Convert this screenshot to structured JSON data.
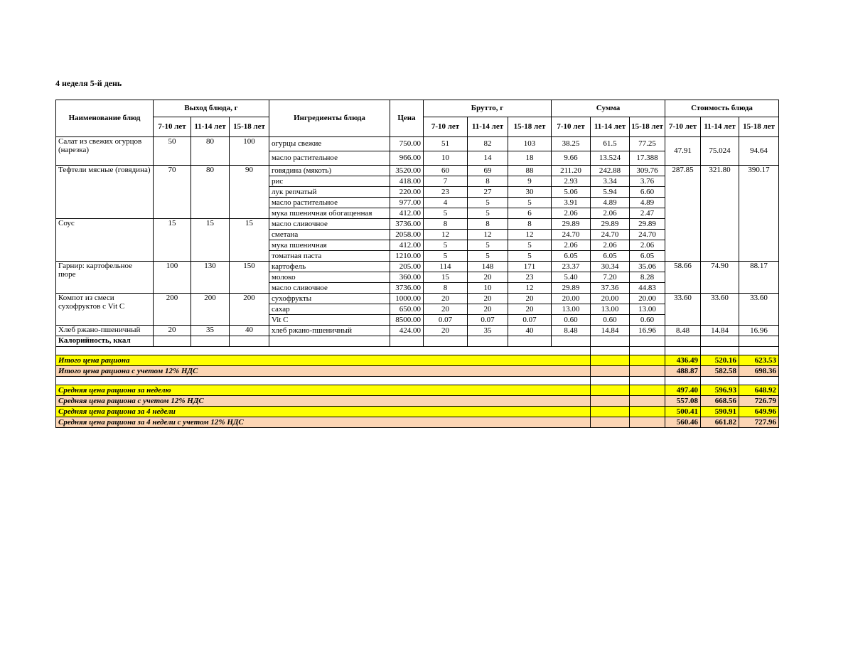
{
  "page": {
    "title": "4 неделя 5-й день"
  },
  "table": {
    "header": {
      "dish_name": "Наименование блюд",
      "output_group": "Выход блюда, г",
      "ingredients": "Ингредиенты блюда",
      "price": "Цена",
      "gross_group": "Брутто, г",
      "sum_group": "Сумма",
      "cost_group": "Стоимость блюда",
      "age_cols": [
        "7-10 лет",
        "11-14 лет",
        "15-18 лет"
      ]
    },
    "dishes": [
      {
        "name": "Салат из свежих огурцов (нарезка)",
        "output": [
          "50",
          "80",
          "100"
        ],
        "cost": [
          "47.91",
          "75.024",
          "94.64"
        ],
        "ingredients": [
          {
            "name": "огурцы свежие",
            "price": "750.00",
            "gross": [
              "51",
              "82",
              "103"
            ],
            "sum": [
              "38.25",
              "61.5",
              "77.25"
            ]
          },
          {
            "name": "масло растительное",
            "price": "966.00",
            "gross": [
              "10",
              "14",
              "18"
            ],
            "sum": [
              "9.66",
              "13.524",
              "17.388"
            ]
          }
        ]
      },
      {
        "name": "Тефтели мясные (говядина)",
        "output": [
          "70",
          "80",
          "90"
        ],
        "cost": [
          "287.85",
          "321.80",
          "390.17"
        ],
        "ingredients": [
          {
            "name": "говядина (мякоть)",
            "price": "3520.00",
            "gross": [
              "60",
              "69",
              "88"
            ],
            "sum": [
              "211.20",
              "242.88",
              "309.76"
            ]
          },
          {
            "name": "рис",
            "price": "418.00",
            "gross": [
              "7",
              "8",
              "9"
            ],
            "sum": [
              "2.93",
              "3.34",
              "3.76"
            ]
          },
          {
            "name": "лук репчатый",
            "price": "220.00",
            "gross": [
              "23",
              "27",
              "30"
            ],
            "sum": [
              "5.06",
              "5.94",
              "6.60"
            ]
          },
          {
            "name": "масло растительное",
            "price": "977.00",
            "gross": [
              "4",
              "5",
              "5"
            ],
            "sum": [
              "3.91",
              "4.89",
              "4.89"
            ]
          },
          {
            "name": "мука пшеничная обогащенная",
            "price": "412.00",
            "gross": [
              "5",
              "5",
              "6"
            ],
            "sum": [
              "2.06",
              "2.06",
              "2.47"
            ]
          }
        ]
      },
      {
        "name": "Соус",
        "output": [
          "15",
          "15",
          "15"
        ],
        "cost": null,
        "ingredients": [
          {
            "name": "масло сливочное",
            "price": "3736.00",
            "gross": [
              "8",
              "8",
              "8"
            ],
            "sum": [
              "29.89",
              "29.89",
              "29.89"
            ]
          },
          {
            "name": "сметана",
            "price": "2058.00",
            "gross": [
              "12",
              "12",
              "12"
            ],
            "sum": [
              "24.70",
              "24.70",
              "24.70"
            ]
          },
          {
            "name": "мука пшеничная",
            "price": "412.00",
            "gross": [
              "5",
              "5",
              "5"
            ],
            "sum": [
              "2.06",
              "2.06",
              "2.06"
            ]
          },
          {
            "name": "томатная паста",
            "price": "1210.00",
            "gross": [
              "5",
              "5",
              "5"
            ],
            "sum": [
              "6.05",
              "6.05",
              "6.05"
            ]
          }
        ]
      },
      {
        "name": "Гарнир: картофельное пюре",
        "output": [
          "100",
          "130",
          "150"
        ],
        "cost": [
          "58.66",
          "74.90",
          "88.17"
        ],
        "ingredients": [
          {
            "name": "картофель",
            "price": "205.00",
            "gross": [
              "114",
              "148",
              "171"
            ],
            "sum": [
              "23.37",
              "30.34",
              "35.06"
            ]
          },
          {
            "name": "молоко",
            "price": "360.00",
            "gross": [
              "15",
              "20",
              "23"
            ],
            "sum": [
              "5.40",
              "7.20",
              "8.28"
            ]
          },
          {
            "name": "масло сливочное",
            "price": "3736.00",
            "gross": [
              "8",
              "10",
              "12"
            ],
            "sum": [
              "29.89",
              "37.36",
              "44.83"
            ]
          }
        ]
      },
      {
        "name": "Компот из смеси сухофруктов с Vit C",
        "output": [
          "200",
          "200",
          "200"
        ],
        "cost": [
          "33.60",
          "33.60",
          "33.60"
        ],
        "ingredients": [
          {
            "name": "сухофрукты",
            "price": "1000.00",
            "gross": [
              "20",
              "20",
              "20"
            ],
            "sum": [
              "20.00",
              "20.00",
              "20.00"
            ]
          },
          {
            "name": "сахар",
            "price": "650.00",
            "gross": [
              "20",
              "20",
              "20"
            ],
            "sum": [
              "13.00",
              "13.00",
              "13.00"
            ]
          },
          {
            "name": "Vit C",
            "price": "8500.00",
            "gross": [
              "0.07",
              "0.07",
              "0.07"
            ],
            "sum": [
              "0.60",
              "0.60",
              "0.60"
            ]
          }
        ]
      },
      {
        "name": "Хлеб ржано-пшеничный",
        "output": [
          "20",
          "35",
          "40"
        ],
        "cost": [
          "8.48",
          "14.84",
          "16.96"
        ],
        "ingredients": [
          {
            "name": "хлеб ржано-пшеничный",
            "price": "424.00",
            "gross": [
              "20",
              "35",
              "40"
            ],
            "sum": [
              "8.48",
              "14.84",
              "16.96"
            ]
          }
        ]
      }
    ],
    "calories_label": "Калорийность, ккал",
    "summary": [
      {
        "label": "Итого цена рациона",
        "values": [
          "436.49",
          "520.16",
          "623.53"
        ],
        "bg": "yellow"
      },
      {
        "label": "Итого цена рациона с учетом 12% НДС",
        "values": [
          "488.87",
          "582.58",
          "698.36"
        ],
        "bg": "orange"
      },
      {
        "label": "",
        "values": [
          "",
          "",
          ""
        ],
        "bg": "none",
        "spacer": true
      },
      {
        "label": "Средняя цена рациона за неделю",
        "values": [
          "497.40",
          "596.93",
          "648.92"
        ],
        "bg": "yellow"
      },
      {
        "label": "Средняя цена рациона с учетом 12% НДС",
        "values": [
          "557.08",
          "668.56",
          "726.79"
        ],
        "bg": "orange"
      },
      {
        "label": "Средняя цена рациона за 4 недели",
        "values": [
          "500.41",
          "590.91",
          "649.96"
        ],
        "bg": "yellow"
      },
      {
        "label": "Средняя цена рациона за 4 недели с учетом 12% НДС",
        "values": [
          "560.46",
          "661.82",
          "727.96"
        ],
        "bg": "orange"
      }
    ],
    "colors": {
      "yellow": "#FFFF00",
      "orange": "#FCD5B4"
    }
  }
}
